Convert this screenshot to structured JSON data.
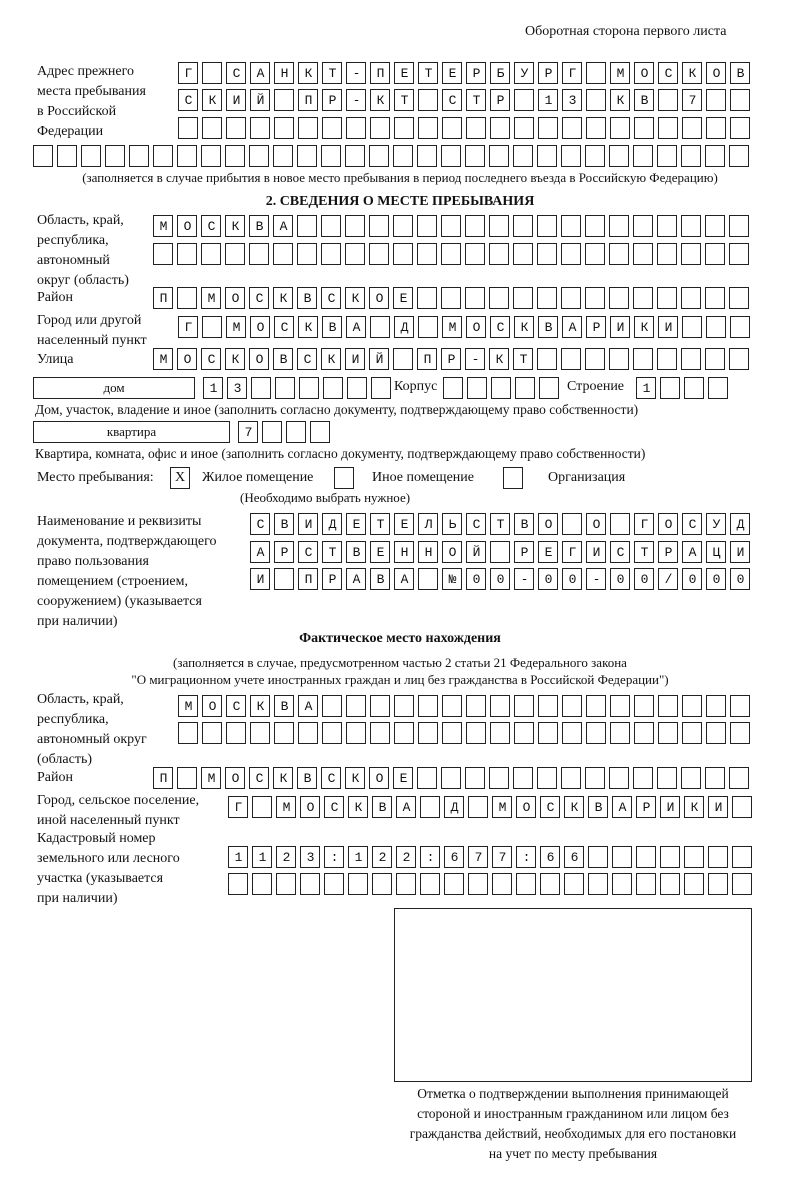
{
  "header": {
    "side_note": "Оборотная сторона первого листа"
  },
  "prev_address": {
    "label_lines": [
      "Адрес прежнего",
      "места пребывания",
      "в Российской",
      "Федерации"
    ],
    "rows": [
      "Г САНКТ-ПЕТЕРБУРГ МОСКОВ",
      "СКИЙ ПР-КТ СТР 13 КВ 7  ",
      "",
      ""
    ],
    "note": "(заполняется в случае прибытия в новое место пребывания в период последнего въезда в Российскую Федерацию)"
  },
  "section2": {
    "title": "2. СВЕДЕНИЯ О МЕСТЕ ПРЕБЫВАНИЯ",
    "region_label_lines": [
      "Область, край,",
      "республика,",
      "автономный",
      "округ (область)"
    ],
    "region_rows": [
      "МОСКВА",
      ""
    ],
    "district_label": "Район",
    "district": "П МОСКВСКОЕ",
    "city_label_lines": [
      "Город или другой",
      "населенный пункт"
    ],
    "city": "Г МОСКВА Д МОСКВАРИКИ",
    "street_label": "Улица",
    "street": "МОСКОВСКИЙ ПР-КТ",
    "house_type": "дом",
    "house_number": "13",
    "korpus_label": "Корпус",
    "korpus": "",
    "building_label": "Строение",
    "building": "1",
    "house_hint": "Дом, участок, владение и иное (заполнить согласно документу, подтверждающему право собственности)",
    "apt_type": "квартира",
    "apt_number": "7",
    "apt_hint": "Квартира, комната, офис и иное (заполнить согласно документу, подтверждающему право собственности)",
    "stay_place_label": "Место пребывания:",
    "options": [
      {
        "label": "Жилое помещение",
        "mark": "X"
      },
      {
        "label": "Иное помещение",
        "mark": ""
      },
      {
        "label": "Организация",
        "mark": ""
      }
    ],
    "choose_hint": "(Необходимо выбрать нужное)",
    "doc_label_lines": [
      "Наименование и реквизиты",
      "документа, подтверждающего",
      "право пользования",
      "помещением (строением,",
      "сооружением) (указывается",
      "при наличии)"
    ],
    "doc_rows": [
      "СВИДЕТЕЛЬСТВО О ГОСУД",
      "АРСТВЕННОЙ РЕГИСТРАЦИ",
      "И ПРАВА №00-00-00/000"
    ]
  },
  "actual": {
    "title": "Фактическое место нахождения",
    "note_lines": [
      "(заполняется в случае, предусмотренном частью 2 статьи 21 Федерального закона",
      "\"О миграционном учете иностранных граждан и лиц без гражданства в Российской Федерации\")"
    ],
    "region_label_lines": [
      "Область, край,",
      "республика,",
      "автономный округ",
      "(область)"
    ],
    "region_rows": [
      "МОСКВА",
      ""
    ],
    "district_label": "Район",
    "district": "П МОСКВСКОЕ",
    "city_label_lines": [
      "Город, сельское поселение,",
      "иной населенный пункт"
    ],
    "city": "Г МОСКВА Д МОСКВАРИКИ",
    "cadastral_label_lines": [
      "Кадастровый номер",
      "земельного или лесного",
      "участка (указывается",
      "при наличии)"
    ],
    "cadastral_rows": [
      "1123:122:677:66",
      ""
    ]
  },
  "stamp": {
    "caption_lines": [
      "Отметка о подтверждении выполнения принимающей",
      "стороной и иностранным гражданином или лицом без",
      "гражданства действий, необходимых для его постановки",
      "на учет по месту пребывания"
    ]
  }
}
